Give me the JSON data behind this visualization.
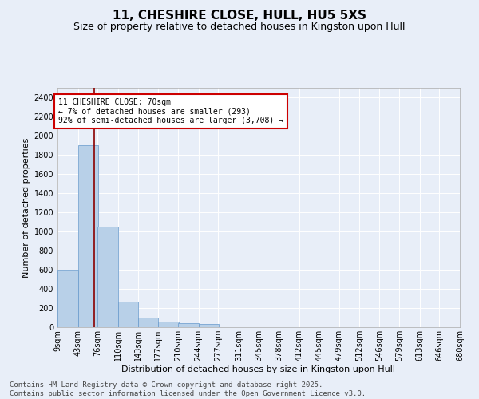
{
  "title": "11, CHESHIRE CLOSE, HULL, HU5 5XS",
  "subtitle": "Size of property relative to detached houses in Kingston upon Hull",
  "xlabel": "Distribution of detached houses by size in Kingston upon Hull",
  "ylabel": "Number of detached properties",
  "bin_edges": [
    9,
    43,
    76,
    110,
    143,
    177,
    210,
    244,
    277,
    311,
    345,
    378,
    412,
    445,
    479,
    512,
    546,
    579,
    613,
    646,
    680
  ],
  "bin_labels": [
    "9sqm",
    "43sqm",
    "76sqm",
    "110sqm",
    "143sqm",
    "177sqm",
    "210sqm",
    "244sqm",
    "277sqm",
    "311sqm",
    "345sqm",
    "378sqm",
    "412sqm",
    "445sqm",
    "479sqm",
    "512sqm",
    "546sqm",
    "579sqm",
    "613sqm",
    "646sqm",
    "680sqm"
  ],
  "values": [
    600,
    1900,
    1050,
    270,
    100,
    55,
    40,
    30,
    0,
    0,
    0,
    0,
    0,
    0,
    0,
    0,
    0,
    0,
    0,
    0
  ],
  "bar_color": "#b8d0e8",
  "bar_edge_color": "#6699cc",
  "bg_color": "#e8eef8",
  "grid_color": "#ffffff",
  "vline_x": 70,
  "vline_color": "#8b0000",
  "annotation_text": "11 CHESHIRE CLOSE: 70sqm\n← 7% of detached houses are smaller (293)\n92% of semi-detached houses are larger (3,708) →",
  "annotation_box_color": "#cc0000",
  "ylim": [
    0,
    2500
  ],
  "yticks": [
    0,
    200,
    400,
    600,
    800,
    1000,
    1200,
    1400,
    1600,
    1800,
    2000,
    2200,
    2400
  ],
  "footer": "Contains HM Land Registry data © Crown copyright and database right 2025.\nContains public sector information licensed under the Open Government Licence v3.0.",
  "title_fontsize": 11,
  "subtitle_fontsize": 9,
  "label_fontsize": 8,
  "tick_fontsize": 7,
  "footer_fontsize": 6.5
}
